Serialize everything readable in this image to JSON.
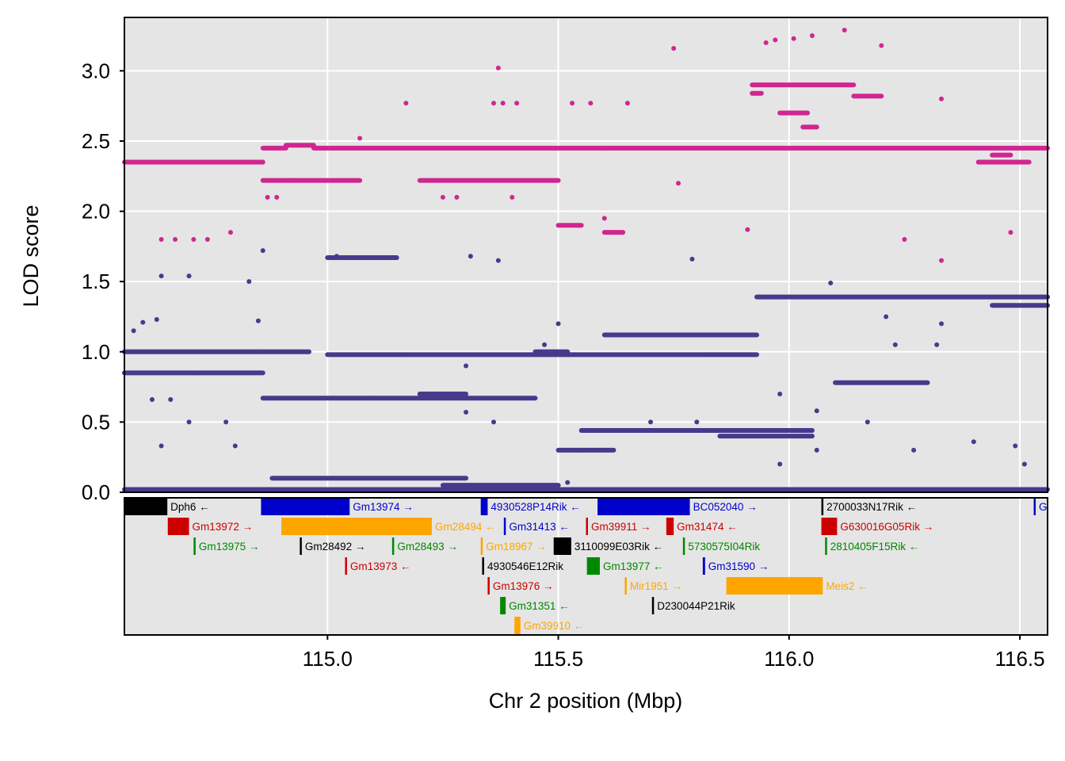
{
  "chart_data": {
    "type": "scatter",
    "title": "",
    "xlabel": "Chr 2 position (Mbp)",
    "ylabel": "LOD score",
    "xlim": [
      114.56,
      116.56
    ],
    "ylim": [
      0,
      3.38
    ],
    "xticks": [
      115.0,
      115.5,
      116.0,
      116.5
    ],
    "xtick_labels": [
      "115.0",
      "115.5",
      "116.0",
      "116.5"
    ],
    "yticks": [
      0,
      0.5,
      1.0,
      1.5,
      2.0,
      2.5,
      3.0
    ],
    "ytick_labels": [
      "0.0",
      "0.5",
      "1.0",
      "1.5",
      "2.0",
      "2.5",
      "3.0"
    ],
    "grid": true,
    "legend": "none",
    "colors": {
      "panel_bg": "#e5e5e5",
      "grid": "#ffffff",
      "magenta": "#d02690",
      "purple": "#463a8c"
    },
    "series": [
      {
        "color": "#d02690",
        "segments": [
          [
            114.56,
            114.66,
            2.35
          ],
          [
            114.66,
            114.86,
            2.35
          ],
          [
            114.86,
            114.91,
            2.45
          ],
          [
            114.91,
            114.97,
            2.47
          ],
          [
            114.97,
            115.6,
            2.45
          ],
          [
            115.6,
            116.56,
            2.45
          ],
          [
            114.86,
            114.93,
            2.22
          ],
          [
            114.93,
            115.07,
            2.22
          ],
          [
            115.2,
            115.5,
            2.22
          ],
          [
            115.92,
            116.03,
            2.9
          ],
          [
            116.03,
            116.14,
            2.9
          ],
          [
            116.14,
            116.2,
            2.82
          ],
          [
            115.92,
            115.94,
            2.84
          ],
          [
            116.03,
            116.06,
            2.6
          ],
          [
            115.98,
            116.04,
            2.7
          ],
          [
            115.5,
            115.55,
            1.9
          ],
          [
            115.6,
            115.64,
            1.85
          ],
          [
            116.41,
            116.52,
            2.35
          ],
          [
            116.44,
            116.48,
            2.4
          ]
        ],
        "points": [
          [
            114.64,
            1.8
          ],
          [
            114.67,
            1.8
          ],
          [
            114.71,
            1.8
          ],
          [
            114.74,
            1.8
          ],
          [
            114.79,
            1.85
          ],
          [
            114.87,
            2.1
          ],
          [
            114.89,
            2.1
          ],
          [
            115.07,
            2.52
          ],
          [
            115.17,
            2.77
          ],
          [
            115.37,
            3.02
          ],
          [
            115.36,
            2.77
          ],
          [
            115.38,
            2.77
          ],
          [
            115.41,
            2.77
          ],
          [
            115.53,
            2.77
          ],
          [
            115.57,
            2.77
          ],
          [
            115.65,
            2.77
          ],
          [
            115.75,
            3.16
          ],
          [
            115.76,
            2.2
          ],
          [
            115.91,
            1.87
          ],
          [
            115.95,
            3.2
          ],
          [
            116.05,
            3.25
          ],
          [
            116.12,
            3.29
          ],
          [
            116.2,
            3.18
          ],
          [
            115.97,
            3.22
          ],
          [
            116.01,
            3.23
          ],
          [
            116.33,
            2.8
          ],
          [
            116.25,
            1.8
          ],
          [
            116.33,
            1.65
          ],
          [
            116.48,
            1.85
          ],
          [
            115.25,
            2.1
          ],
          [
            115.28,
            2.1
          ],
          [
            115.4,
            2.1
          ],
          [
            115.6,
            1.95
          ]
        ]
      },
      {
        "color": "#463a8c",
        "segments": [
          [
            114.56,
            116.56,
            0.02
          ],
          [
            114.56,
            114.86,
            1.0
          ],
          [
            114.86,
            114.96,
            1.0
          ],
          [
            115.0,
            115.93,
            0.98
          ],
          [
            114.56,
            114.71,
            0.85
          ],
          [
            114.71,
            114.86,
            0.85
          ],
          [
            114.86,
            115.1,
            0.67
          ],
          [
            115.1,
            115.45,
            0.67
          ],
          [
            115.2,
            115.3,
            0.7
          ],
          [
            115.93,
            116.56,
            1.39
          ],
          [
            116.44,
            116.56,
            1.33
          ],
          [
            115.6,
            115.93,
            1.12
          ],
          [
            115.55,
            116.05,
            0.44
          ],
          [
            116.1,
            116.3,
            0.78
          ],
          [
            114.88,
            115.3,
            0.1
          ],
          [
            115.25,
            115.5,
            0.05
          ],
          [
            115.0,
            115.08,
            1.67
          ],
          [
            115.06,
            115.15,
            1.67
          ],
          [
            115.45,
            115.52,
            1.0
          ],
          [
            115.5,
            115.62,
            0.3
          ],
          [
            115.85,
            116.05,
            0.4
          ]
        ],
        "points": [
          [
            114.86,
            1.72
          ],
          [
            115.02,
            1.68
          ],
          [
            115.37,
            1.65
          ],
          [
            115.79,
            1.66
          ],
          [
            116.09,
            1.49
          ],
          [
            115.31,
            1.68
          ],
          [
            114.64,
            1.54
          ],
          [
            114.7,
            1.54
          ],
          [
            114.83,
            1.5
          ],
          [
            114.85,
            1.22
          ],
          [
            114.62,
            0.66
          ],
          [
            114.66,
            0.66
          ],
          [
            114.7,
            0.5
          ],
          [
            114.78,
            0.5
          ],
          [
            114.8,
            0.33
          ],
          [
            114.64,
            0.33
          ],
          [
            115.3,
            0.9
          ],
          [
            115.3,
            0.57
          ],
          [
            115.36,
            0.5
          ],
          [
            115.7,
            0.5
          ],
          [
            115.8,
            0.5
          ],
          [
            115.98,
            0.7
          ],
          [
            116.06,
            0.58
          ],
          [
            116.17,
            0.5
          ],
          [
            116.23,
            1.05
          ],
          [
            116.32,
            1.05
          ],
          [
            116.21,
            1.25
          ],
          [
            116.33,
            1.2
          ],
          [
            116.27,
            0.3
          ],
          [
            116.4,
            0.36
          ],
          [
            116.49,
            0.33
          ],
          [
            116.51,
            0.2
          ],
          [
            115.5,
            1.2
          ],
          [
            115.47,
            1.05
          ],
          [
            115.55,
            0.3
          ],
          [
            114.58,
            1.15
          ],
          [
            114.6,
            1.21
          ],
          [
            114.63,
            1.23
          ],
          [
            115.52,
            0.07
          ],
          [
            115.98,
            0.2
          ],
          [
            116.06,
            0.3
          ]
        ]
      }
    ],
    "genes": [
      {
        "name": "Dph6",
        "start": 114.56,
        "end": 114.653,
        "row": 0,
        "color": "#000000",
        "arrow": "←"
      },
      {
        "name": "Gm13974",
        "start": 114.856,
        "end": 115.048,
        "row": 0,
        "color": "#0000cc",
        "arrow": "→"
      },
      {
        "name": "4930528P14Rik",
        "start": 115.332,
        "end": 115.347,
        "row": 0,
        "color": "#0000cc",
        "arrow": "←"
      },
      {
        "name": "BC052040",
        "start": 115.585,
        "end": 115.785,
        "row": 0,
        "color": "#0000cc",
        "arrow": "→"
      },
      {
        "name": "2700033N17Rik",
        "start": 116.07,
        "end": 116.073,
        "row": 0,
        "color": "#000000",
        "arrow": "←"
      },
      {
        "name": "G",
        "start": 116.53,
        "end": 116.534,
        "row": 0,
        "color": "#0000cc",
        "arrow": ""
      },
      {
        "name": "Gm13972",
        "start": 114.654,
        "end": 114.7,
        "row": 1,
        "color": "#cc0000",
        "arrow": "→"
      },
      {
        "name": "Gm28494",
        "start": 114.9,
        "end": 115.226,
        "row": 1,
        "color": "#ffa500",
        "arrow": "←"
      },
      {
        "name": "Gm31413",
        "start": 115.382,
        "end": 115.386,
        "row": 1,
        "color": "#0000cc",
        "arrow": "←"
      },
      {
        "name": "Gm39911",
        "start": 115.56,
        "end": 115.563,
        "row": 1,
        "color": "#cc0000",
        "arrow": "→"
      },
      {
        "name": "Gm31474",
        "start": 115.734,
        "end": 115.75,
        "row": 1,
        "color": "#cc0000",
        "arrow": "←"
      },
      {
        "name": "G630016G05Rik",
        "start": 116.07,
        "end": 116.104,
        "row": 1,
        "color": "#cc0000",
        "arrow": "→"
      },
      {
        "name": "Gm13975",
        "start": 114.71,
        "end": 114.713,
        "row": 2,
        "color": "#008800",
        "arrow": "→"
      },
      {
        "name": "Gm28492",
        "start": 114.94,
        "end": 114.943,
        "row": 2,
        "color": "#000000",
        "arrow": "→"
      },
      {
        "name": "Gm28493",
        "start": 115.14,
        "end": 115.143,
        "row": 2,
        "color": "#008800",
        "arrow": "→"
      },
      {
        "name": "Gm18967",
        "start": 115.332,
        "end": 115.335,
        "row": 2,
        "color": "#ffa500",
        "arrow": "→"
      },
      {
        "name": "3110099E03Rik",
        "start": 115.49,
        "end": 115.528,
        "row": 2,
        "color": "#000000",
        "arrow": "←"
      },
      {
        "name": "5730575I04Rik",
        "start": 115.77,
        "end": 115.773,
        "row": 2,
        "color": "#008800",
        "arrow": ""
      },
      {
        "name": "2810405F15Rik",
        "start": 116.078,
        "end": 116.081,
        "row": 2,
        "color": "#008800",
        "arrow": "←"
      },
      {
        "name": "Gm13973",
        "start": 115.038,
        "end": 115.041,
        "row": 3,
        "color": "#cc0000",
        "arrow": "←"
      },
      {
        "name": "4930546E12Rik",
        "start": 115.335,
        "end": 115.338,
        "row": 3,
        "color": "#000000",
        "arrow": ""
      },
      {
        "name": "Gm13977",
        "start": 115.562,
        "end": 115.59,
        "row": 3,
        "color": "#008800",
        "arrow": "←"
      },
      {
        "name": "Gm31590",
        "start": 115.813,
        "end": 115.818,
        "row": 3,
        "color": "#0000cc",
        "arrow": "→"
      },
      {
        "name": "Gm13976",
        "start": 115.347,
        "end": 115.35,
        "row": 4,
        "color": "#cc0000",
        "arrow": "→"
      },
      {
        "name": "Mir1951",
        "start": 115.644,
        "end": 115.647,
        "row": 4,
        "color": "#ffa500",
        "arrow": "→"
      },
      {
        "name": "Meis2",
        "start": 115.864,
        "end": 116.073,
        "row": 4,
        "color": "#ffa500",
        "arrow": "←"
      },
      {
        "name": "Gm31351",
        "start": 115.374,
        "end": 115.386,
        "row": 5,
        "color": "#008800",
        "arrow": "←"
      },
      {
        "name": "D230044P21Rik",
        "start": 115.703,
        "end": 115.706,
        "row": 5,
        "color": "#000000",
        "arrow": ""
      },
      {
        "name": "Gm39910",
        "start": 115.405,
        "end": 115.418,
        "row": 6,
        "color": "#ffa500",
        "arrow": "←"
      }
    ]
  }
}
